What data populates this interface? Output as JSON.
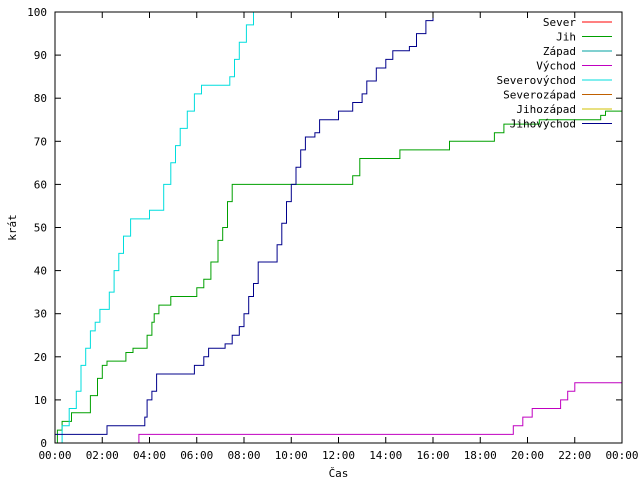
{
  "chart_data": {
    "type": "line",
    "title": "",
    "xlabel": "Čas",
    "ylabel": "krát",
    "xlim": [
      0,
      24
    ],
    "ylim": [
      0,
      100
    ],
    "grid": false,
    "legend_position": "top-right",
    "x_ticks": [
      {
        "value": 0,
        "label": "00:00"
      },
      {
        "value": 2,
        "label": "02:00"
      },
      {
        "value": 4,
        "label": "04:00"
      },
      {
        "value": 6,
        "label": "06:00"
      },
      {
        "value": 8,
        "label": "08:00"
      },
      {
        "value": 10,
        "label": "10:00"
      },
      {
        "value": 12,
        "label": "12:00"
      },
      {
        "value": 14,
        "label": "14:00"
      },
      {
        "value": 16,
        "label": "16:00"
      },
      {
        "value": 18,
        "label": "18:00"
      },
      {
        "value": 20,
        "label": "20:00"
      },
      {
        "value": 22,
        "label": "22:00"
      },
      {
        "value": 24,
        "label": "00:00"
      }
    ],
    "y_ticks": [
      0,
      10,
      20,
      30,
      40,
      50,
      60,
      70,
      80,
      90,
      100
    ],
    "series": [
      {
        "name": "Sever",
        "color": "#ff0000",
        "points": []
      },
      {
        "name": "Jih",
        "color": "#00a000",
        "points": [
          [
            0.0,
            0
          ],
          [
            0.1,
            3
          ],
          [
            0.3,
            5
          ],
          [
            0.6,
            5
          ],
          [
            0.7,
            7
          ],
          [
            1.3,
            7
          ],
          [
            1.5,
            11
          ],
          [
            1.8,
            15
          ],
          [
            2.0,
            18
          ],
          [
            2.2,
            19
          ],
          [
            2.9,
            19
          ],
          [
            3.0,
            21
          ],
          [
            3.3,
            22
          ],
          [
            3.7,
            22
          ],
          [
            3.9,
            25
          ],
          [
            4.1,
            28
          ],
          [
            4.2,
            30
          ],
          [
            4.4,
            32
          ],
          [
            4.8,
            32
          ],
          [
            4.9,
            34
          ],
          [
            5.9,
            34
          ],
          [
            6.0,
            36
          ],
          [
            6.3,
            38
          ],
          [
            6.6,
            42
          ],
          [
            6.9,
            47
          ],
          [
            7.1,
            50
          ],
          [
            7.3,
            56
          ],
          [
            7.5,
            60
          ],
          [
            12.4,
            60
          ],
          [
            12.6,
            62
          ],
          [
            12.9,
            66
          ],
          [
            14.5,
            66
          ],
          [
            14.6,
            68
          ],
          [
            16.6,
            68
          ],
          [
            16.7,
            70
          ],
          [
            18.5,
            70
          ],
          [
            18.6,
            72
          ],
          [
            18.9,
            72
          ],
          [
            19.0,
            74
          ],
          [
            20.4,
            74
          ],
          [
            20.5,
            75
          ],
          [
            23.0,
            75
          ],
          [
            23.1,
            76
          ],
          [
            23.3,
            77
          ],
          [
            24.0,
            77
          ]
        ]
      },
      {
        "name": "Západ",
        "color": "#00a0a0",
        "points": []
      },
      {
        "name": "Východ",
        "color": "#c000c0",
        "points": [
          [
            3.5,
            0
          ],
          [
            3.55,
            2
          ],
          [
            19.3,
            2
          ],
          [
            19.4,
            4
          ],
          [
            19.7,
            4
          ],
          [
            19.8,
            6
          ],
          [
            20.0,
            6
          ],
          [
            20.2,
            8
          ],
          [
            21.3,
            8
          ],
          [
            21.4,
            10
          ],
          [
            21.7,
            12
          ],
          [
            21.9,
            12
          ],
          [
            22.0,
            14
          ],
          [
            24.0,
            14
          ]
        ]
      },
      {
        "name": "Severovýchod",
        "color": "#00dddd",
        "points": [
          [
            0.2,
            0
          ],
          [
            0.3,
            4
          ],
          [
            0.6,
            8
          ],
          [
            0.9,
            12
          ],
          [
            1.1,
            18
          ],
          [
            1.3,
            22
          ],
          [
            1.5,
            26
          ],
          [
            1.7,
            28
          ],
          [
            1.9,
            31
          ],
          [
            2.3,
            35
          ],
          [
            2.5,
            40
          ],
          [
            2.7,
            44
          ],
          [
            2.9,
            48
          ],
          [
            3.2,
            52
          ],
          [
            3.9,
            52
          ],
          [
            4.0,
            54
          ],
          [
            4.4,
            54
          ],
          [
            4.6,
            60
          ],
          [
            4.9,
            65
          ],
          [
            5.1,
            69
          ],
          [
            5.3,
            73
          ],
          [
            5.6,
            77
          ],
          [
            5.9,
            81
          ],
          [
            6.2,
            83
          ],
          [
            7.3,
            83
          ],
          [
            7.4,
            85
          ],
          [
            7.6,
            89
          ],
          [
            7.8,
            93
          ],
          [
            8.1,
            97
          ],
          [
            8.4,
            100
          ]
        ]
      },
      {
        "name": "Severozápad",
        "color": "#c06000",
        "points": []
      },
      {
        "name": "Jihozápad",
        "color": "#d0c000",
        "points": []
      },
      {
        "name": "Jihovýchod",
        "color": "#00008b",
        "points": [
          [
            0.0,
            2
          ],
          [
            2.1,
            2
          ],
          [
            2.2,
            4
          ],
          [
            3.7,
            4
          ],
          [
            3.8,
            6
          ],
          [
            3.9,
            10
          ],
          [
            4.1,
            12
          ],
          [
            4.3,
            16
          ],
          [
            5.7,
            16
          ],
          [
            5.9,
            18
          ],
          [
            6.3,
            20
          ],
          [
            6.5,
            22
          ],
          [
            7.2,
            23
          ],
          [
            7.5,
            25
          ],
          [
            7.8,
            27
          ],
          [
            8.0,
            30
          ],
          [
            8.2,
            34
          ],
          [
            8.4,
            37
          ],
          [
            8.6,
            42
          ],
          [
            9.2,
            42
          ],
          [
            9.4,
            46
          ],
          [
            9.6,
            51
          ],
          [
            9.8,
            56
          ],
          [
            10.0,
            60
          ],
          [
            10.2,
            64
          ],
          [
            10.4,
            68
          ],
          [
            10.6,
            71
          ],
          [
            11.0,
            72
          ],
          [
            11.2,
            75
          ],
          [
            11.7,
            75
          ],
          [
            12.0,
            77
          ],
          [
            12.4,
            77
          ],
          [
            12.6,
            79
          ],
          [
            13.0,
            81
          ],
          [
            13.2,
            84
          ],
          [
            13.6,
            87
          ],
          [
            14.0,
            89
          ],
          [
            14.3,
            91
          ],
          [
            15.0,
            92
          ],
          [
            15.3,
            95
          ],
          [
            15.7,
            98
          ],
          [
            16.0,
            100
          ]
        ]
      }
    ]
  }
}
